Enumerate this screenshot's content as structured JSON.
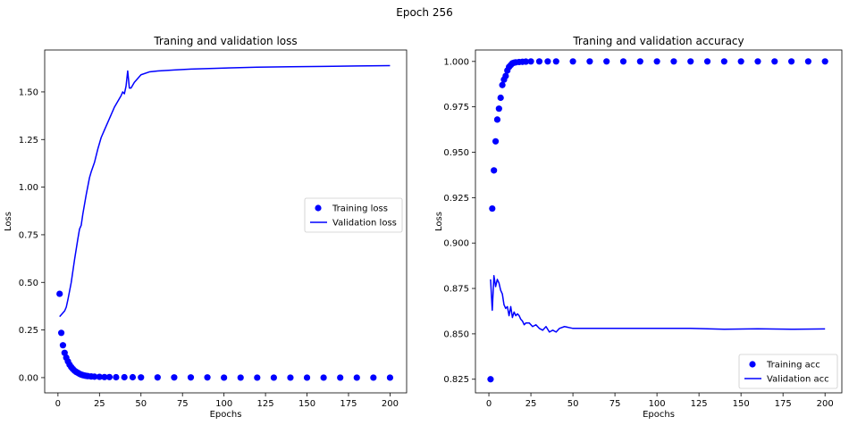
{
  "figure": {
    "suptitle": "Epoch 256"
  },
  "chart_data": [
    {
      "type": "line",
      "title": "Traning and validation loss",
      "xlabel": "Epochs",
      "ylabel": "Loss",
      "xlim": [
        -8,
        210
      ],
      "ylim": [
        -0.08,
        1.72
      ],
      "xticks": [
        0,
        25,
        50,
        75,
        100,
        125,
        150,
        175,
        200
      ],
      "xtick_labels": [
        "0",
        "25",
        "50",
        "75",
        "100",
        "125",
        "150",
        "175",
        "200"
      ],
      "yticks": [
        0.0,
        0.25,
        0.5,
        0.75,
        1.0,
        1.25,
        1.5
      ],
      "ytick_labels": [
        "0.00",
        "0.25",
        "0.50",
        "0.75",
        "1.00",
        "1.25",
        "1.50"
      ],
      "grid": false,
      "legend_position": "center-right",
      "series": [
        {
          "name": "Training loss",
          "style": "scatter",
          "color": "#0000ff",
          "x": [
            1,
            2,
            3,
            4,
            5,
            6,
            7,
            8,
            9,
            10,
            11,
            12,
            13,
            14,
            15,
            16,
            17,
            18,
            20,
            22,
            25,
            28,
            31,
            35,
            40,
            45,
            50,
            60,
            70,
            80,
            90,
            100,
            110,
            120,
            130,
            140,
            150,
            160,
            170,
            180,
            190,
            200
          ],
          "y": [
            0.44,
            0.235,
            0.17,
            0.13,
            0.105,
            0.085,
            0.068,
            0.055,
            0.045,
            0.036,
            0.03,
            0.025,
            0.02,
            0.016,
            0.013,
            0.011,
            0.009,
            0.008,
            0.006,
            0.005,
            0.004,
            0.003,
            0.003,
            0.002,
            0.002,
            0.002,
            0.001,
            0.001,
            0.001,
            0.001,
            0.001,
            0.0,
            0.0,
            0.0,
            0.0,
            0.0,
            0.0,
            0.0,
            0.0,
            0.0,
            0.0,
            0.0
          ]
        },
        {
          "name": "Validation loss",
          "style": "line",
          "color": "#0000ff",
          "x": [
            1,
            2,
            3,
            4,
            5,
            6,
            8,
            10,
            12,
            13,
            14,
            15,
            17,
            19,
            20,
            22,
            24,
            26,
            28,
            30,
            32,
            34,
            36,
            38,
            39,
            40,
            41,
            42,
            43,
            44,
            46,
            48,
            50,
            55,
            60,
            70,
            80,
            100,
            120,
            140,
            160,
            180,
            200
          ],
          "y": [
            0.32,
            0.33,
            0.34,
            0.35,
            0.37,
            0.41,
            0.5,
            0.62,
            0.73,
            0.78,
            0.8,
            0.86,
            0.96,
            1.05,
            1.08,
            1.13,
            1.2,
            1.26,
            1.3,
            1.34,
            1.38,
            1.42,
            1.45,
            1.48,
            1.5,
            1.49,
            1.53,
            1.61,
            1.52,
            1.52,
            1.55,
            1.57,
            1.59,
            1.605,
            1.61,
            1.615,
            1.62,
            1.625,
            1.63,
            1.632,
            1.634,
            1.636,
            1.638
          ]
        }
      ]
    },
    {
      "type": "line",
      "title": "Traning and validation accuracy",
      "xlabel": "Epochs",
      "ylabel": "Loss",
      "xlim": [
        -8,
        210
      ],
      "ylim": [
        0.8175,
        1.0063
      ],
      "xticks": [
        0,
        25,
        50,
        75,
        100,
        125,
        150,
        175,
        200
      ],
      "xtick_labels": [
        "0",
        "25",
        "50",
        "75",
        "100",
        "125",
        "150",
        "175",
        "200"
      ],
      "yticks": [
        0.825,
        0.85,
        0.875,
        0.9,
        0.925,
        0.95,
        0.975,
        1.0
      ],
      "ytick_labels": [
        "0.825",
        "0.850",
        "0.875",
        "0.900",
        "0.925",
        "0.950",
        "0.975",
        "1.000"
      ],
      "grid": false,
      "legend_position": "lower-right",
      "series": [
        {
          "name": "Training acc",
          "style": "scatter",
          "color": "#0000ff",
          "x": [
            1,
            2,
            3,
            4,
            5,
            6,
            7,
            8,
            9,
            10,
            11,
            12,
            13,
            14,
            15,
            16,
            18,
            20,
            22,
            25,
            30,
            35,
            40,
            50,
            60,
            70,
            80,
            90,
            100,
            110,
            120,
            130,
            140,
            150,
            160,
            170,
            180,
            190,
            200
          ],
          "y": [
            0.825,
            0.919,
            0.94,
            0.956,
            0.968,
            0.974,
            0.98,
            0.987,
            0.99,
            0.992,
            0.995,
            0.997,
            0.998,
            0.999,
            0.9993,
            0.9995,
            0.9997,
            0.9998,
            0.9999,
            1.0,
            1.0,
            1.0,
            1.0,
            1.0,
            1.0,
            1.0,
            1.0,
            1.0,
            1.0,
            1.0,
            1.0,
            1.0,
            1.0,
            1.0,
            1.0,
            1.0,
            1.0,
            1.0,
            1.0
          ]
        },
        {
          "name": "Validation acc",
          "style": "line",
          "color": "#0000ff",
          "x": [
            1,
            2,
            3,
            4,
            5,
            6,
            7,
            8,
            9,
            10,
            11,
            12,
            13,
            14,
            15,
            16,
            17,
            18,
            19,
            20,
            21,
            22,
            24,
            26,
            28,
            30,
            32,
            34,
            36,
            38,
            40,
            42,
            45,
            50,
            55,
            60,
            70,
            80,
            90,
            100,
            120,
            140,
            160,
            180,
            200
          ],
          "y": [
            0.88,
            0.863,
            0.882,
            0.876,
            0.88,
            0.878,
            0.874,
            0.872,
            0.866,
            0.864,
            0.865,
            0.86,
            0.865,
            0.859,
            0.862,
            0.86,
            0.861,
            0.86,
            0.858,
            0.857,
            0.855,
            0.856,
            0.856,
            0.854,
            0.855,
            0.853,
            0.852,
            0.854,
            0.851,
            0.852,
            0.851,
            0.853,
            0.854,
            0.853,
            0.853,
            0.853,
            0.853,
            0.853,
            0.853,
            0.853,
            0.853,
            0.8525,
            0.8528,
            0.8525,
            0.8527
          ]
        }
      ]
    }
  ]
}
